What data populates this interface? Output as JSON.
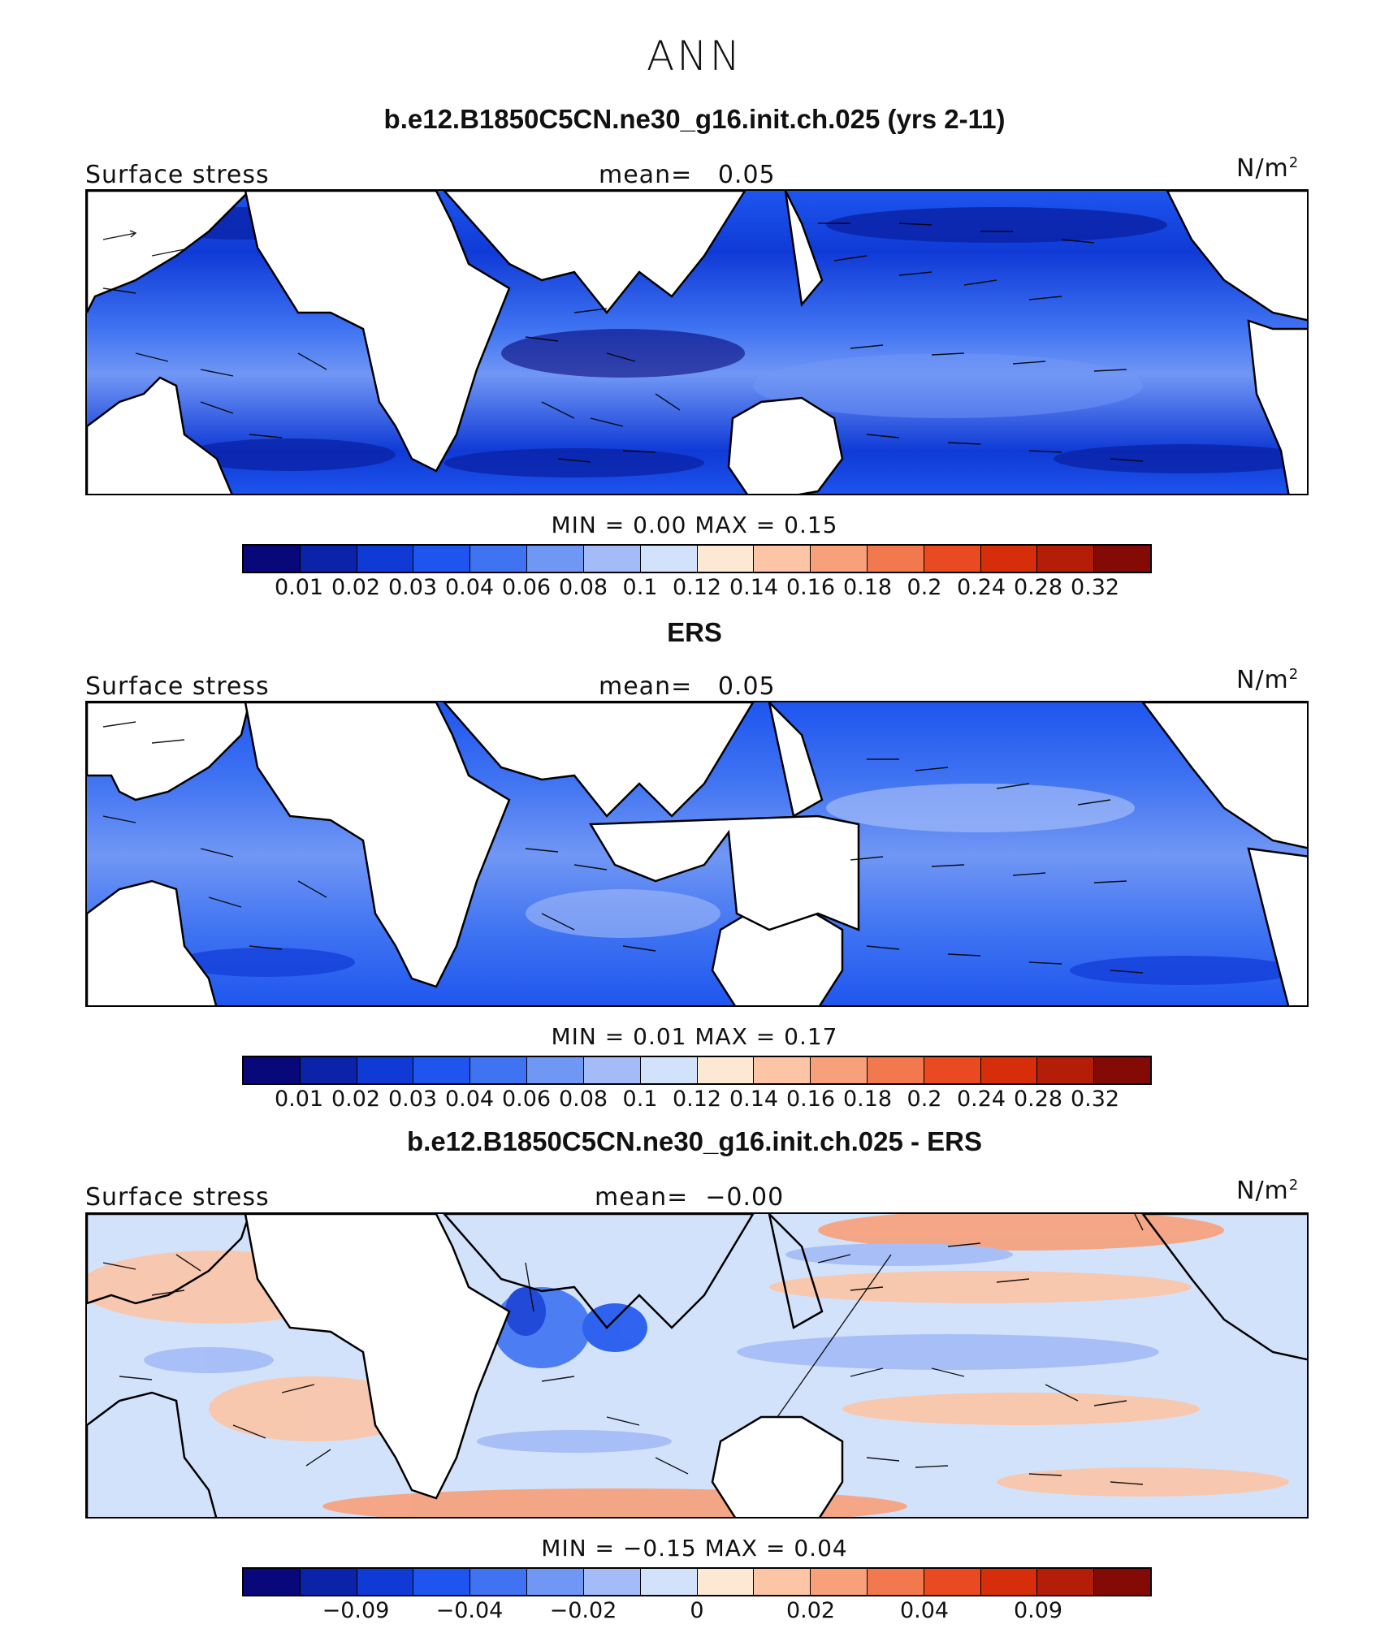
{
  "title": "ANN",
  "panels": [
    {
      "title": "b.e12.B1850C5CN.ne30_g16.init.ch.025 (yrs 2-11)",
      "variable": "Surface stress",
      "mean_label": "mean=",
      "mean_value": "0.05",
      "units": "N/m",
      "units_sup": "2",
      "minmax": "MIN =    0.00  MAX =    0.15",
      "colorbar": {
        "ticks": [
          "0.01",
          "0.02",
          "0.03",
          "0.04",
          "0.06",
          "0.08",
          "0.1",
          "0.12",
          "0.14",
          "0.16",
          "0.18",
          "0.2",
          "0.24",
          "0.28",
          "0.32"
        ]
      }
    },
    {
      "title": "ERS",
      "variable": "Surface stress",
      "mean_label": "mean=",
      "mean_value": "0.05",
      "units": "N/m",
      "units_sup": "2",
      "minmax": "MIN =    0.01  MAX =    0.17",
      "colorbar": {
        "ticks": [
          "0.01",
          "0.02",
          "0.03",
          "0.04",
          "0.06",
          "0.08",
          "0.1",
          "0.12",
          "0.14",
          "0.16",
          "0.18",
          "0.2",
          "0.24",
          "0.28",
          "0.32"
        ]
      }
    },
    {
      "title": "b.e12.B1850C5CN.ne30_g16.init.ch.025 - ERS",
      "variable": "Surface stress",
      "mean_label": "mean=",
      "mean_value": "−0.00",
      "units": "N/m",
      "units_sup": "2",
      "minmax": "MIN =  −0.15  MAX =    0.04",
      "colorbar": {
        "ticks": [
          "−0.09",
          "−0.04",
          "−0.02",
          "0",
          "0.02",
          "0.04",
          "0.09"
        ]
      }
    }
  ],
  "colors": [
    "#08087a",
    "#0a23a8",
    "#0f3ad6",
    "#1e55ee",
    "#3f73f2",
    "#7197f5",
    "#a3bbf7",
    "#d3e2fb",
    "#fde8d4",
    "#fbc5a6",
    "#f7a07a",
    "#f2784d",
    "#ea4a22",
    "#d62e0b",
    "#b41e08",
    "#830a05"
  ]
}
